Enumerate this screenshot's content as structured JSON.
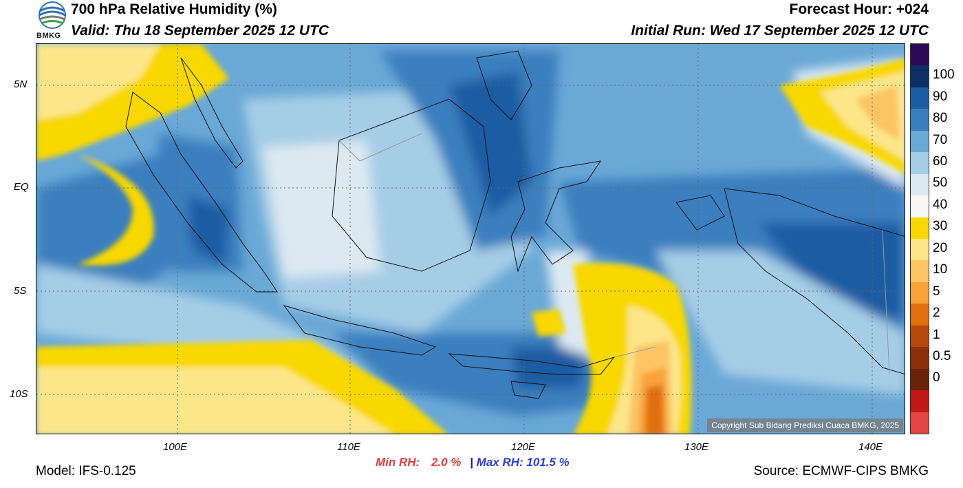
{
  "header": {
    "title": "700 hPa Relative Humidity (%)",
    "valid": "Valid: Thu 18 September 2025 12 UTC",
    "forecast_hour": "Forecast Hour: +024",
    "initial_run": "Initial Run: Wed 17 September 2025 12 UTC",
    "logo_text": "BMKG"
  },
  "map": {
    "lat_labels": [
      "5N",
      "EQ",
      "5S",
      "10S"
    ],
    "lon_labels": [
      "100E",
      "110E",
      "120E",
      "130E",
      "140E"
    ],
    "copyright": "Copyright Sub Bidang Prediksi Cuaca BMKG, 2025"
  },
  "colorbar": {
    "labels": [
      "100",
      "90",
      "80",
      "70",
      "60",
      "50",
      "40",
      "30",
      "20",
      "10",
      "5",
      "2",
      "1",
      "0.5",
      "0"
    ],
    "colors": [
      "#2d0a55",
      "#0c2f66",
      "#1d5ba3",
      "#3a7fbe",
      "#6aa8d6",
      "#a6cde6",
      "#dde9f2",
      "#f7f7f7",
      "#f8d800",
      "#fde68a",
      "#fcc463",
      "#f9a23a",
      "#e0700e",
      "#b4490b",
      "#8a300a",
      "#6a220a",
      "#c01818",
      "#e44646"
    ]
  },
  "footer": {
    "model": "Model: IFS-0.125",
    "min_label": "Min RH:",
    "min_value": "2.0 %",
    "separator": "|",
    "max_label": "Max RH:",
    "max_value": "101.5 %",
    "source": "Source: ECMWF-CIPS BMKG"
  }
}
